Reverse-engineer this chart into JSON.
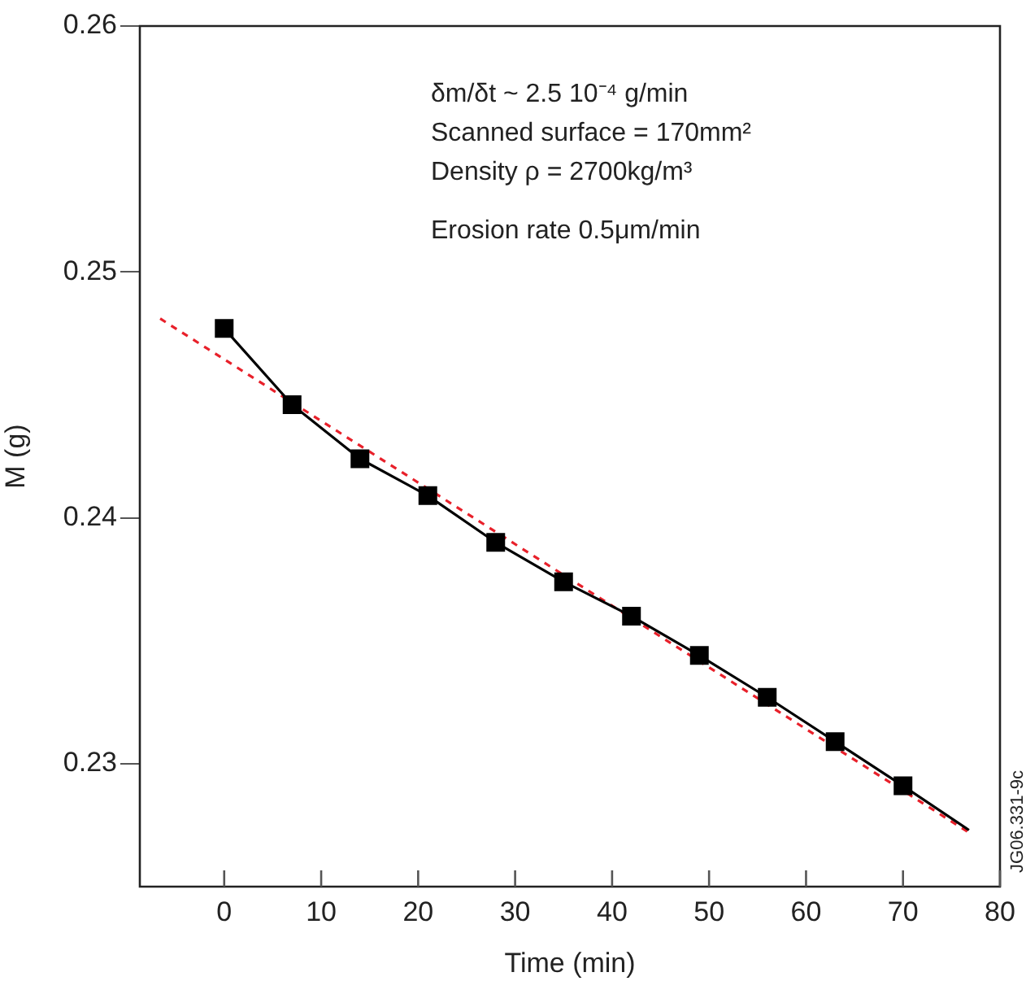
{
  "chart_data": {
    "type": "line",
    "xlabel": "Time (min)",
    "ylabel": "M (g)",
    "xlim": [
      -8.7,
      80
    ],
    "xticks": [
      0,
      10,
      20,
      30,
      40,
      50,
      60,
      70,
      80
    ],
    "ylim": [
      0.225,
      0.26
    ],
    "yticks": [
      0.23,
      0.24,
      0.25,
      0.26
    ],
    "grid": false,
    "legend": false,
    "series": [
      {
        "type": "line",
        "color": "#000000",
        "marker": "none",
        "line_style": "solid",
        "x": [
          0,
          7,
          14,
          21,
          28,
          35,
          42,
          49,
          56,
          63,
          70,
          76.8
        ],
        "values": [
          0.2477,
          0.2446,
          0.2424,
          0.2409,
          0.239,
          0.2374,
          0.236,
          0.2344,
          0.2327,
          0.2309,
          0.2291,
          0.2273
        ]
      },
      {
        "type": "scatter",
        "color": "#000000",
        "marker": "square",
        "x": [
          0,
          7,
          14,
          21,
          28,
          35,
          42,
          49,
          56,
          63,
          70
        ],
        "values": [
          0.2477,
          0.2446,
          0.2424,
          0.2409,
          0.239,
          0.2374,
          0.236,
          0.2344,
          0.2327,
          0.2309,
          0.2291
        ]
      },
      {
        "type": "line",
        "color": "#e8202a",
        "marker": "none",
        "line_style": "dashed",
        "x": [
          -6.6,
          76.8
        ],
        "values": [
          0.2481,
          0.2272
        ]
      }
    ],
    "annotations": [
      "δm/δt ~ 2.5 10⁻⁴ g/min",
      "Scanned surface = 170mm²",
      "Density ρ = 2700kg/m³",
      "Erosion rate 0.5μm/min",
      "JG06.331-9c"
    ]
  }
}
